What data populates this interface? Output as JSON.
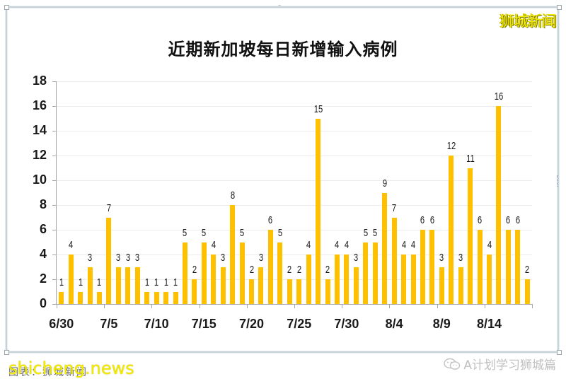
{
  "watermark_top": "狮城新闻",
  "footer": {
    "source_note": "图表：狮城新闻",
    "site_watermark": "shicheng.news",
    "wechat_account": "A计划学习狮城篇"
  },
  "colors": {
    "bar": "#FFC000",
    "axis": "#A6A6A6",
    "grid": "#ECECEC",
    "watermark": "#F4EC00"
  },
  "chart_data": {
    "type": "bar",
    "title": "近期新加坡每日新增输入病例",
    "xlabel": "",
    "ylabel": "",
    "ylim": [
      0,
      18
    ],
    "yticks": [
      0,
      2,
      4,
      6,
      8,
      10,
      12,
      14,
      16,
      18
    ],
    "grid": true,
    "legend": null,
    "data_labels": true,
    "xtick_labels": [
      "6/30",
      "7/5",
      "7/10",
      "7/15",
      "7/20",
      "7/25",
      "7/30",
      "8/4",
      "8/9",
      "8/14"
    ],
    "categories": [
      "6/30",
      "7/1",
      "7/2",
      "7/3",
      "7/4",
      "7/5",
      "7/6",
      "7/7",
      "7/8",
      "7/9",
      "7/10",
      "7/11",
      "7/12",
      "7/13",
      "7/14",
      "7/15",
      "7/16",
      "7/17",
      "7/18",
      "7/19",
      "7/20",
      "7/21",
      "7/22",
      "7/23",
      "7/24",
      "7/25",
      "7/26",
      "7/27",
      "7/28",
      "7/29",
      "7/30",
      "7/31",
      "8/1",
      "8/2",
      "8/3",
      "8/4",
      "8/5",
      "8/6",
      "8/7",
      "8/8",
      "8/9",
      "8/10",
      "8/11",
      "8/12",
      "8/13",
      "8/14",
      "8/15",
      "8/16",
      "8/17",
      "8/18"
    ],
    "values": [
      1,
      4,
      1,
      3,
      1,
      7,
      3,
      3,
      3,
      1,
      1,
      1,
      1,
      5,
      2,
      5,
      4,
      3,
      8,
      5,
      2,
      3,
      6,
      5,
      2,
      2,
      4,
      15,
      2,
      4,
      4,
      3,
      5,
      5,
      9,
      7,
      4,
      4,
      6,
      6,
      3,
      12,
      3,
      11,
      6,
      4,
      16,
      6,
      6,
      2
    ]
  }
}
